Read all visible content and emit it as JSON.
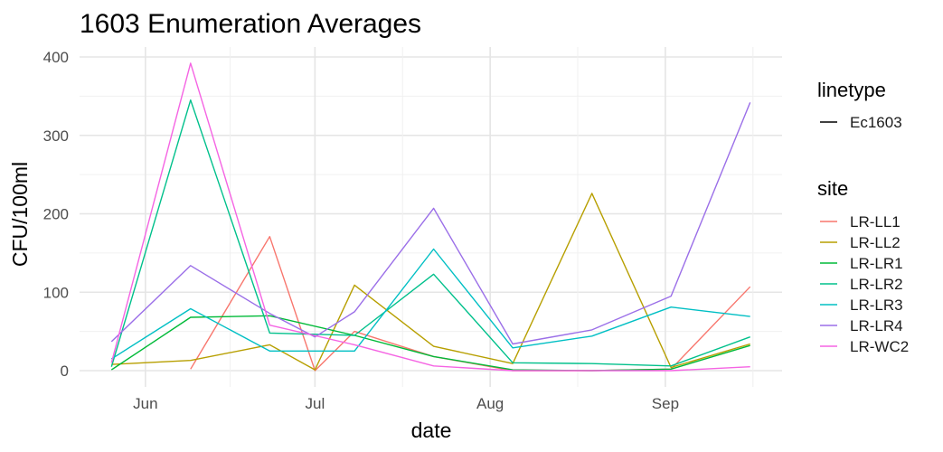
{
  "chart_data": {
    "type": "line",
    "title": "1603 Enumeration Averages",
    "xlabel": "date",
    "ylabel": "CFU/100ml",
    "x_ticks": [
      "Jun",
      "Jul",
      "Aug",
      "Sep"
    ],
    "y_ticks": [
      "0",
      "100",
      "200",
      "300",
      "400"
    ],
    "ylim": [
      0,
      410
    ],
    "grid": true,
    "x": [
      "2021-05-26",
      "2021-06-09",
      "2021-06-23",
      "2021-07-01",
      "2021-07-08",
      "2021-07-22",
      "2021-08-05",
      "2021-08-19",
      "2021-09-02",
      "2021-09-16"
    ],
    "series": [
      {
        "name": "LR-LL1",
        "color": "#F8766D",
        "points": [
          [
            "2021-06-09",
            2
          ],
          [
            "2021-06-23",
            171
          ],
          [
            "2021-07-01",
            0
          ],
          [
            "2021-07-08",
            50
          ],
          [
            "2021-07-22",
            18
          ],
          [
            "2021-08-05",
            0
          ],
          [
            "2021-08-19",
            0
          ],
          [
            "2021-09-02",
            2
          ],
          [
            "2021-09-16",
            107
          ]
        ]
      },
      {
        "name": "LR-LL2",
        "color": "#B79F00",
        "points": [
          [
            "2021-05-26",
            8
          ],
          [
            "2021-06-09",
            13
          ],
          [
            "2021-06-23",
            33
          ],
          [
            "2021-07-01",
            1
          ],
          [
            "2021-07-08",
            109
          ],
          [
            "2021-07-22",
            31
          ],
          [
            "2021-08-05",
            9
          ],
          [
            "2021-08-19",
            226
          ],
          [
            "2021-09-02",
            4
          ],
          [
            "2021-09-16",
            34
          ]
        ]
      },
      {
        "name": "LR-LR1",
        "color": "#00BA38",
        "points": [
          [
            "2021-05-26",
            1
          ],
          [
            "2021-06-09",
            68
          ],
          [
            "2021-06-23",
            70
          ],
          [
            "2021-07-08",
            45
          ],
          [
            "2021-07-22",
            18
          ],
          [
            "2021-08-05",
            1
          ],
          [
            "2021-08-19",
            0
          ],
          [
            "2021-09-02",
            2
          ],
          [
            "2021-09-16",
            32
          ]
        ]
      },
      {
        "name": "LR-LR2",
        "color": "#00C08B",
        "points": [
          [
            "2021-05-26",
            5
          ],
          [
            "2021-06-09",
            345
          ],
          [
            "2021-06-23",
            48
          ],
          [
            "2021-07-08",
            45
          ],
          [
            "2021-07-22",
            123
          ],
          [
            "2021-08-05",
            10
          ],
          [
            "2021-08-19",
            9
          ],
          [
            "2021-09-02",
            6
          ],
          [
            "2021-09-16",
            43
          ]
        ]
      },
      {
        "name": "LR-LR3",
        "color": "#00BFC4",
        "points": [
          [
            "2021-05-26",
            15
          ],
          [
            "2021-06-09",
            79
          ],
          [
            "2021-06-23",
            25
          ],
          [
            "2021-07-08",
            25
          ],
          [
            "2021-07-22",
            155
          ],
          [
            "2021-08-05",
            29
          ],
          [
            "2021-08-19",
            44
          ],
          [
            "2021-09-02",
            81
          ],
          [
            "2021-09-16",
            69
          ]
        ]
      },
      {
        "name": "LR-LR4",
        "color": "#9B6FE8",
        "points": [
          [
            "2021-05-26",
            37
          ],
          [
            "2021-06-09",
            134
          ],
          [
            "2021-06-23",
            73
          ],
          [
            "2021-07-01",
            43
          ],
          [
            "2021-07-08",
            75
          ],
          [
            "2021-07-22",
            207
          ],
          [
            "2021-08-05",
            34
          ],
          [
            "2021-08-19",
            52
          ],
          [
            "2021-09-02",
            95
          ],
          [
            "2021-09-16",
            342
          ]
        ]
      },
      {
        "name": "LR-WC2",
        "color": "#F564E3",
        "points": [
          [
            "2021-05-26",
            10
          ],
          [
            "2021-06-09",
            392
          ],
          [
            "2021-06-23",
            58
          ],
          [
            "2021-07-08",
            33
          ],
          [
            "2021-07-22",
            6
          ],
          [
            "2021-08-05",
            0
          ],
          [
            "2021-08-19",
            0
          ],
          [
            "2021-09-02",
            0
          ],
          [
            "2021-09-16",
            5
          ]
        ]
      }
    ],
    "legend": {
      "linetype_title": "linetype",
      "linetype_label": "Ec1603",
      "site_title": "site"
    }
  }
}
